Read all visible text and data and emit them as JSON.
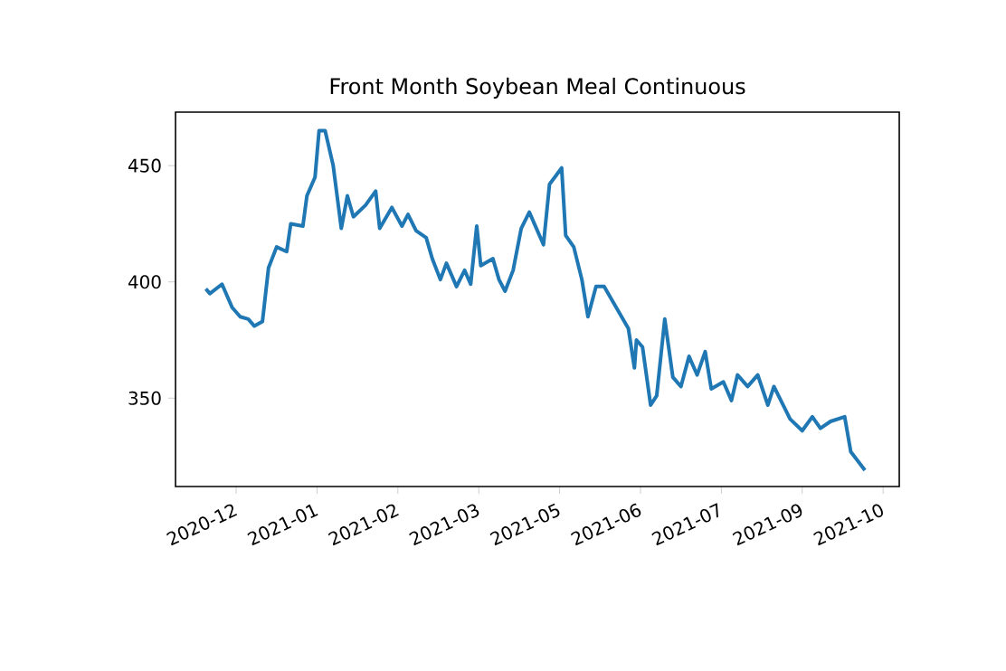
{
  "chart_data": {
    "type": "line",
    "title": "Front Month Soybean Meal Continuous",
    "x": [
      "2020-11-16",
      "2020-11-18",
      "2020-11-24",
      "2020-11-29",
      "2020-12-03",
      "2020-12-07",
      "2020-12-10",
      "2020-12-14",
      "2020-12-17",
      "2020-12-21",
      "2020-12-26",
      "2020-12-28",
      "2021-01-03",
      "2021-01-05",
      "2021-01-09",
      "2021-01-11",
      "2021-01-14",
      "2021-01-18",
      "2021-01-22",
      "2021-01-25",
      "2021-01-28",
      "2021-02-03",
      "2021-02-08",
      "2021-02-10",
      "2021-02-16",
      "2021-02-21",
      "2021-02-24",
      "2021-02-28",
      "2021-03-05",
      "2021-03-08",
      "2021-03-12",
      "2021-03-15",
      "2021-03-20",
      "2021-03-24",
      "2021-03-27",
      "2021-03-30",
      "2021-04-01",
      "2021-04-07",
      "2021-04-10",
      "2021-04-13",
      "2021-04-17",
      "2021-04-21",
      "2021-04-25",
      "2021-04-29",
      "2021-05-02",
      "2021-05-05",
      "2021-05-11",
      "2021-05-13",
      "2021-05-17",
      "2021-05-21",
      "2021-05-24",
      "2021-05-28",
      "2021-06-01",
      "2021-06-07",
      "2021-06-13",
      "2021-06-16",
      "2021-06-17",
      "2021-06-20",
      "2021-06-24",
      "2021-06-27",
      "2021-07-01",
      "2021-07-05",
      "2021-07-09",
      "2021-07-13",
      "2021-07-17",
      "2021-07-21",
      "2021-07-24",
      "2021-07-30",
      "2021-08-03",
      "2021-08-06",
      "2021-08-11",
      "2021-08-16",
      "2021-08-21",
      "2021-08-24",
      "2021-09-01",
      "2021-09-07",
      "2021-09-12",
      "2021-09-16",
      "2021-09-21",
      "2021-09-28",
      "2021-10-01",
      "2021-10-08"
    ],
    "values": [
      397,
      395,
      399,
      389,
      385,
      384,
      381,
      383,
      406,
      415,
      413,
      425,
      424,
      437,
      445,
      465,
      465,
      450,
      423,
      437,
      428,
      433,
      439,
      423,
      432,
      424,
      429,
      422,
      419,
      410,
      401,
      408,
      398,
      405,
      399,
      424,
      407,
      410,
      401,
      396,
      405,
      423,
      430,
      422,
      416,
      442,
      449,
      420,
      415,
      401,
      385,
      398,
      398,
      389,
      380,
      363,
      375,
      372,
      347,
      351,
      384,
      359,
      355,
      368,
      360,
      370,
      354,
      357,
      349,
      360,
      355,
      360,
      347,
      355,
      341,
      336,
      342,
      337,
      340,
      342,
      327,
      319
    ],
    "color": "#1f77b4",
    "xlim": [
      "2020-11-01",
      "2021-10-25"
    ],
    "ylim": [
      312,
      473
    ],
    "xticks": [
      {
        "value": "2020-12-01",
        "label": "2020-12"
      },
      {
        "value": "2021-01-10",
        "label": "2021-01"
      },
      {
        "value": "2021-02-19",
        "label": "2021-02"
      },
      {
        "value": "2021-03-31",
        "label": "2021-03"
      },
      {
        "value": "2021-05-10",
        "label": "2021-05"
      },
      {
        "value": "2021-06-19",
        "label": "2021-06"
      },
      {
        "value": "2021-07-29",
        "label": "2021-07"
      },
      {
        "value": "2021-09-07",
        "label": "2021-09"
      },
      {
        "value": "2021-10-17",
        "label": "2021-10"
      }
    ],
    "yticks": [
      350,
      400,
      450
    ]
  }
}
